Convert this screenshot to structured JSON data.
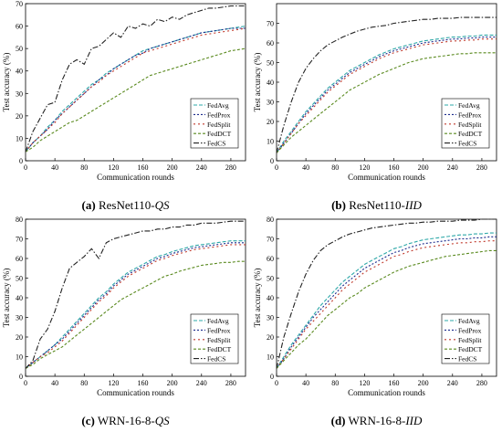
{
  "colors": {
    "FedAvg": "#2ea8a8",
    "FedProx": "#1b2a8c",
    "FedSplit": "#c0392b",
    "FedDCT": "#5a8a1f",
    "FedCS": "#222222"
  },
  "chart_data": [
    {
      "id": "a",
      "type": "line",
      "caption_label": "(a)",
      "caption_text": "ResNet110-",
      "caption_italic": "QS",
      "xlabel": "Communication rounds",
      "ylabel": "Test accuracy (%)",
      "xlim": [
        0,
        300
      ],
      "ylim": [
        0,
        70
      ],
      "xticks": [
        0,
        40,
        80,
        120,
        160,
        200,
        240,
        280
      ],
      "yticks": [
        0,
        10,
        20,
        30,
        40,
        50,
        60,
        70
      ],
      "legend_position": "bottom-right",
      "x": [
        0,
        10,
        20,
        30,
        40,
        50,
        60,
        70,
        80,
        90,
        100,
        110,
        120,
        130,
        140,
        150,
        160,
        170,
        180,
        190,
        200,
        210,
        220,
        230,
        240,
        250,
        260,
        270,
        280,
        290,
        300
      ],
      "series": [
        {
          "name": "FedAvg",
          "values": [
            4,
            8,
            11,
            15,
            18,
            22,
            25,
            28,
            31,
            34,
            36,
            39,
            41,
            43,
            45,
            47,
            49,
            50,
            51,
            52,
            53,
            54,
            55,
            56,
            57,
            57.5,
            58,
            58.5,
            59,
            59.5,
            60
          ]
        },
        {
          "name": "FedProx",
          "values": [
            4,
            8,
            11,
            14,
            18,
            21,
            24,
            27,
            30,
            33,
            36,
            38,
            41,
            43,
            45,
            47,
            48,
            50,
            51,
            52,
            53,
            54,
            55,
            56,
            57,
            57.5,
            58,
            58.5,
            59,
            59,
            59
          ]
        },
        {
          "name": "FedSplit",
          "values": [
            4,
            8,
            11,
            14,
            17,
            21,
            24,
            27,
            30,
            33,
            35,
            38,
            40,
            42,
            44,
            46,
            48,
            49,
            50,
            51,
            52,
            53,
            54,
            55,
            56,
            56.5,
            57,
            57.5,
            58,
            58.5,
            59
          ]
        },
        {
          "name": "FedDCT",
          "values": [
            4,
            6,
            9,
            11,
            13,
            15,
            17,
            18,
            20,
            22,
            24,
            26,
            28,
            30,
            32,
            34,
            36,
            38,
            39,
            40,
            41,
            42,
            43,
            44,
            45,
            46,
            47,
            48,
            49,
            49.5,
            50
          ]
        },
        {
          "name": "FedCS",
          "values": [
            4,
            13,
            19,
            25,
            26,
            36,
            43,
            45,
            43,
            50,
            51,
            54,
            57,
            55,
            60,
            59,
            61,
            60,
            63,
            62,
            64,
            63,
            65,
            66,
            67,
            68,
            68,
            68.5,
            69,
            69,
            69
          ]
        }
      ]
    },
    {
      "id": "b",
      "type": "line",
      "caption_label": "(b)",
      "caption_text": "ResNet110-",
      "caption_italic": "IID",
      "xlabel": "Communication rounds",
      "ylabel": "Test accuracy (%)",
      "xlim": [
        0,
        300
      ],
      "ylim": [
        0,
        80
      ],
      "xticks": [
        0,
        40,
        80,
        120,
        160,
        200,
        240,
        280
      ],
      "yticks": [
        0,
        10,
        20,
        30,
        40,
        50,
        60,
        70
      ],
      "legend_position": "bottom-right",
      "x": [
        0,
        10,
        20,
        30,
        40,
        50,
        60,
        70,
        80,
        90,
        100,
        110,
        120,
        130,
        140,
        150,
        160,
        170,
        180,
        190,
        200,
        210,
        220,
        230,
        240,
        250,
        260,
        270,
        280,
        290,
        300
      ],
      "series": [
        {
          "name": "FedAvg",
          "values": [
            4,
            10,
            15,
            20,
            25,
            29,
            33,
            37,
            40,
            43,
            46,
            48,
            50,
            52,
            54,
            55.5,
            57,
            58,
            59,
            60,
            61,
            61.5,
            62,
            62.5,
            63,
            63,
            63.5,
            63.5,
            64,
            64,
            64
          ]
        },
        {
          "name": "FedProx",
          "values": [
            4,
            9,
            14,
            19,
            24,
            28,
            32,
            36,
            39,
            42,
            45,
            47,
            49,
            51,
            53,
            54.5,
            56,
            57,
            58,
            59,
            60,
            60.5,
            61,
            61.5,
            62,
            62,
            62.5,
            62.5,
            63,
            63,
            63
          ]
        },
        {
          "name": "FedSplit",
          "values": [
            4,
            9,
            14,
            19,
            23,
            27,
            31,
            35,
            38,
            41,
            44,
            46,
            48,
            50,
            52,
            53.5,
            55,
            56,
            57,
            58,
            59,
            59.5,
            60,
            60.5,
            61,
            61,
            61.5,
            61.5,
            62,
            62,
            62
          ]
        },
        {
          "name": "FedDCT",
          "values": [
            4,
            8,
            12,
            15,
            18,
            21,
            24,
            27,
            30,
            33,
            36,
            38,
            40,
            42,
            44,
            45.5,
            47,
            48.5,
            50,
            51,
            52,
            52.5,
            53,
            53.5,
            54,
            54.5,
            54.5,
            55,
            55,
            55,
            55
          ]
        },
        {
          "name": "FedCS",
          "values": [
            4,
            18,
            30,
            40,
            47,
            52,
            56,
            59,
            61,
            63,
            64.5,
            66,
            67,
            68,
            68.5,
            69,
            70,
            70.5,
            71,
            71.5,
            72,
            72,
            72.5,
            72.5,
            72.5,
            73,
            73,
            73,
            73,
            73,
            73
          ]
        }
      ]
    },
    {
      "id": "c",
      "type": "line",
      "caption_label": "(c)",
      "caption_text": "WRN-16-8-",
      "caption_italic": "QS",
      "xlabel": "Communication rounds",
      "ylabel": "Test accuracy (%)",
      "xlim": [
        0,
        300
      ],
      "ylim": [
        0,
        80
      ],
      "xticks": [
        0,
        40,
        80,
        120,
        160,
        200,
        240,
        280
      ],
      "yticks": [
        0,
        10,
        20,
        30,
        40,
        50,
        60,
        70,
        80
      ],
      "legend_position": "bottom-right",
      "x": [
        0,
        10,
        20,
        30,
        40,
        50,
        60,
        70,
        80,
        90,
        100,
        110,
        120,
        130,
        140,
        150,
        160,
        170,
        180,
        190,
        200,
        210,
        220,
        230,
        240,
        250,
        260,
        270,
        280,
        290,
        300
      ],
      "series": [
        {
          "name": "FedAvg",
          "values": [
            4,
            7,
            10,
            13,
            16,
            20,
            24,
            28,
            32,
            36,
            40,
            43,
            47,
            50,
            53,
            55,
            57,
            59,
            61,
            62,
            63.5,
            64.5,
            65.5,
            66.5,
            67,
            67.5,
            68,
            68.5,
            69,
            69,
            69
          ]
        },
        {
          "name": "FedProx",
          "values": [
            4,
            7,
            10,
            13,
            16,
            19,
            23,
            27,
            31,
            35,
            39,
            42,
            46,
            49,
            52,
            54,
            56,
            58,
            60,
            61,
            62.5,
            63.5,
            64.5,
            65.5,
            66,
            66.5,
            67,
            67.5,
            68,
            68,
            68
          ]
        },
        {
          "name": "FedSplit",
          "values": [
            4,
            7,
            10,
            12,
            15,
            18,
            22,
            26,
            30,
            34,
            38,
            41,
            45,
            48,
            51,
            53,
            55,
            57,
            59,
            60,
            61.5,
            62.5,
            63.5,
            64.5,
            65,
            65.5,
            66,
            66.5,
            67,
            67,
            67
          ]
        },
        {
          "name": "FedDCT",
          "values": [
            4,
            6,
            9,
            11,
            13,
            15,
            18,
            21,
            24,
            27,
            30,
            33,
            36,
            39,
            41,
            43,
            45,
            47,
            49,
            51,
            52,
            53.5,
            54.5,
            55.5,
            56.5,
            57,
            57.5,
            58,
            58,
            58.5,
            58.5
          ]
        },
        {
          "name": "FedCS",
          "values": [
            4,
            8,
            19,
            24,
            33,
            45,
            55,
            58,
            61,
            65,
            60,
            68,
            70,
            71,
            72,
            73,
            74,
            74,
            75,
            75,
            76,
            76,
            77,
            77,
            78,
            78,
            78,
            78.5,
            79,
            79,
            79
          ]
        }
      ]
    },
    {
      "id": "d",
      "type": "line",
      "caption_label": "(d)",
      "caption_text": "WRN-16-8-",
      "caption_italic": "IID",
      "xlabel": "Communication rounds",
      "ylabel": "Test accuracy (%)",
      "xlim": [
        0,
        300
      ],
      "ylim": [
        0,
        80
      ],
      "xticks": [
        0,
        40,
        80,
        120,
        160,
        200,
        240,
        280
      ],
      "yticks": [
        0,
        10,
        20,
        30,
        40,
        50,
        60,
        70,
        80
      ],
      "legend_position": "bottom-right",
      "x": [
        0,
        10,
        20,
        30,
        40,
        50,
        60,
        70,
        80,
        90,
        100,
        110,
        120,
        130,
        140,
        150,
        160,
        170,
        180,
        190,
        200,
        210,
        220,
        230,
        240,
        250,
        260,
        270,
        280,
        290,
        300
      ],
      "series": [
        {
          "name": "FedAvg",
          "values": [
            4,
            10,
            16,
            21,
            26,
            31,
            36,
            40,
            44,
            48,
            51,
            54,
            57,
            59,
            61,
            63,
            65,
            66,
            67.5,
            68.5,
            69.5,
            70,
            70.5,
            71,
            71.5,
            72,
            72,
            72.5,
            72.5,
            73,
            73
          ]
        },
        {
          "name": "FedProx",
          "values": [
            4,
            9,
            15,
            20,
            25,
            30,
            34,
            38,
            42,
            46,
            49,
            52,
            55,
            57,
            59,
            61,
            63,
            64,
            65.5,
            66.5,
            67.5,
            68,
            68.5,
            69,
            69.5,
            70,
            70,
            70.5,
            70.5,
            71,
            71
          ]
        },
        {
          "name": "FedSplit",
          "values": [
            4,
            9,
            14,
            19,
            24,
            28,
            32,
            36,
            40,
            44,
            47,
            50,
            53,
            55,
            57,
            59,
            61,
            62,
            63.5,
            64.5,
            65.5,
            66,
            66.5,
            67,
            67.5,
            68,
            68,
            68.5,
            68.5,
            69,
            69
          ]
        },
        {
          "name": "FedDCT",
          "values": [
            4,
            8,
            12,
            16,
            19,
            23,
            27,
            31,
            34,
            37,
            40,
            42,
            45,
            47,
            49,
            51,
            53,
            54.5,
            56,
            57,
            58,
            59,
            60,
            61,
            61.5,
            62,
            62.5,
            63,
            63.5,
            64,
            64
          ]
        },
        {
          "name": "FedCS",
          "values": [
            4,
            20,
            32,
            43,
            52,
            59,
            64,
            67,
            69,
            71,
            72.5,
            73.5,
            74.5,
            75.5,
            76,
            76.5,
            77,
            77.5,
            78,
            78,
            78.5,
            78.5,
            79,
            79,
            79,
            79.5,
            79.5,
            79.5,
            80,
            80,
            80
          ]
        }
      ]
    }
  ]
}
